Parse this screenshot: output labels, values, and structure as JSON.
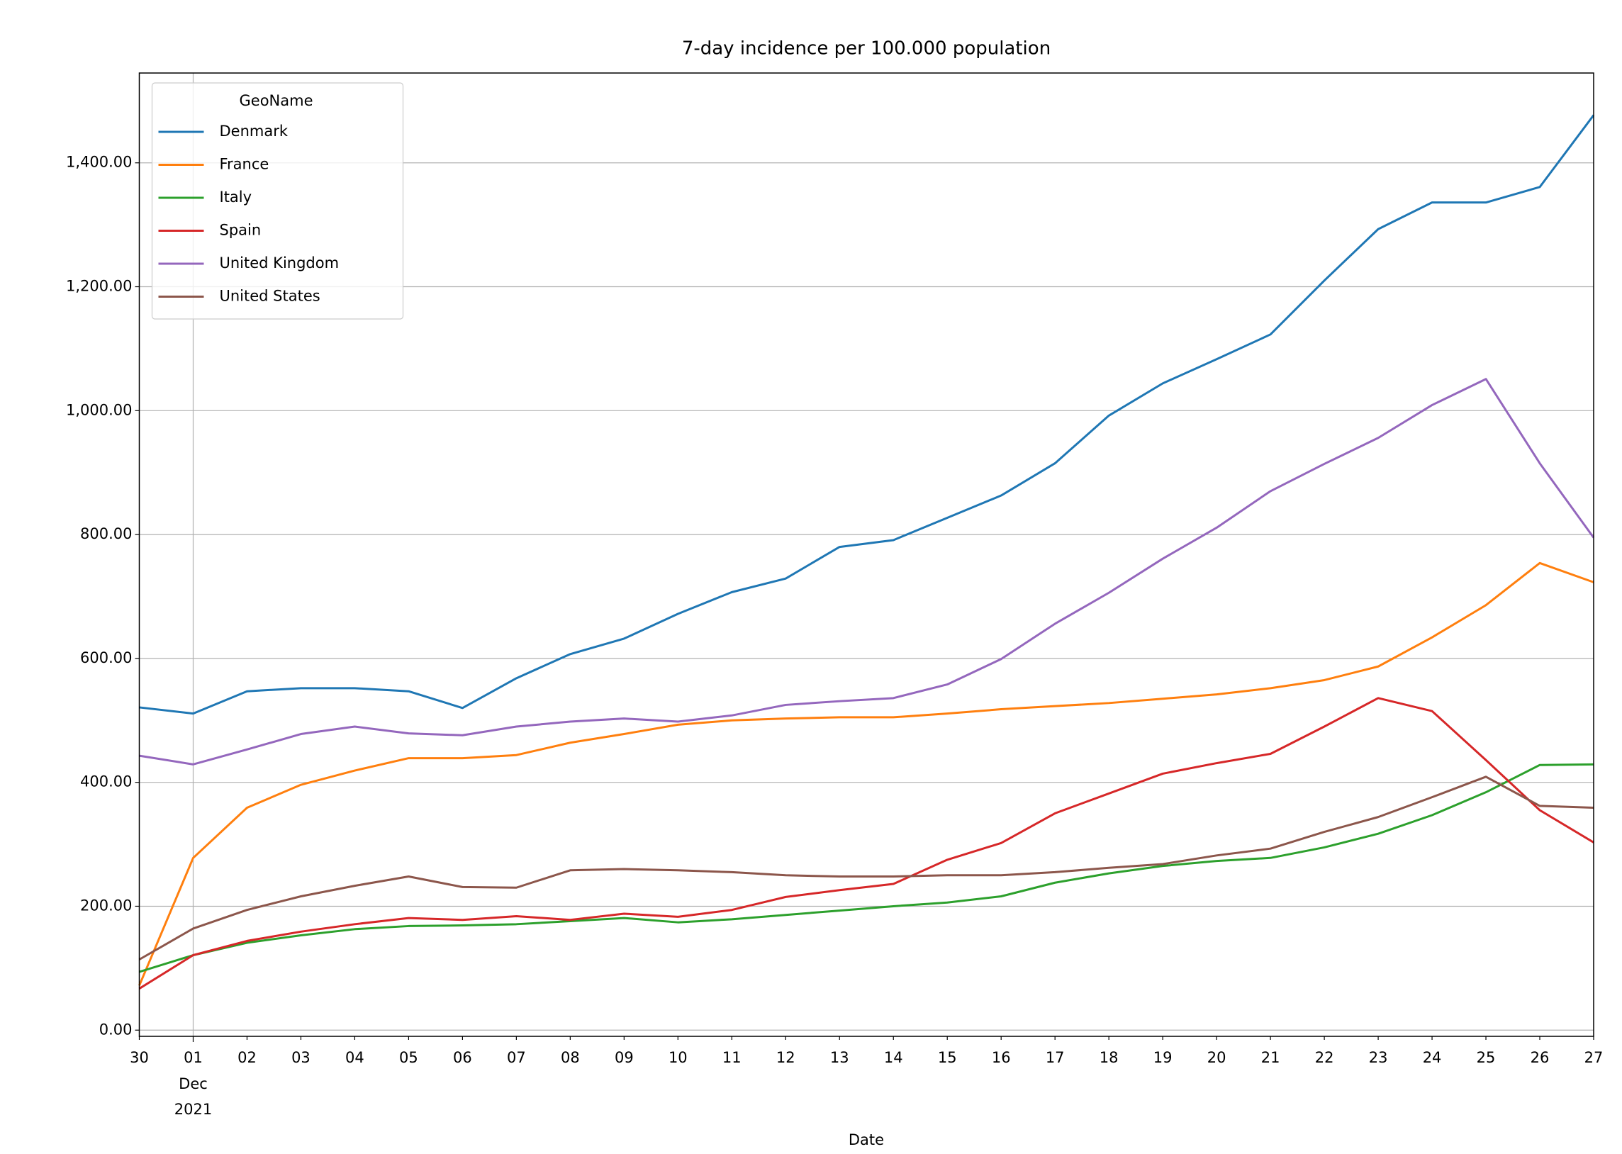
{
  "chart_data": {
    "type": "line",
    "title": "7-day incidence per 100.000 population",
    "x_label": "Date",
    "categories": [
      "30",
      "01",
      "02",
      "03",
      "04",
      "05",
      "06",
      "07",
      "08",
      "09",
      "10",
      "11",
      "12",
      "13",
      "14",
      "15",
      "16",
      "17",
      "18",
      "19",
      "20",
      "21",
      "22",
      "23",
      "24",
      "25",
      "26",
      "27"
    ],
    "month_row": [
      null,
      "Dec",
      null,
      null,
      null,
      null,
      null,
      null,
      null,
      null,
      null,
      null,
      null,
      null,
      null,
      null,
      null,
      null,
      null,
      null,
      null,
      null,
      null,
      null,
      null,
      null,
      null,
      null
    ],
    "year_row": [
      null,
      "2021",
      null,
      null,
      null,
      null,
      null,
      null,
      null,
      null,
      null,
      null,
      null,
      null,
      null,
      null,
      null,
      null,
      null,
      null,
      null,
      null,
      null,
      null,
      null,
      null,
      null,
      null
    ],
    "legend_title": "GeoName",
    "legend_loc": "upper left",
    "grid": true,
    "ylim": [
      -10,
      1545
    ],
    "yticks": [
      {
        "value": 0,
        "label": "0.00"
      },
      {
        "value": 200,
        "label": "200.00"
      },
      {
        "value": 400,
        "label": "400.00"
      },
      {
        "value": 600,
        "label": "600.00"
      },
      {
        "value": 800,
        "label": "800.00"
      },
      {
        "value": 1000,
        "label": "1,000.00"
      },
      {
        "value": 1200,
        "label": "1,200.00"
      },
      {
        "value": 1400,
        "label": "1,400.00"
      }
    ],
    "series": [
      {
        "name": "Denmark",
        "color": "#1f77b4",
        "values": [
          521,
          511,
          547,
          552,
          552,
          547,
          520,
          568,
          607,
          632,
          672,
          707,
          729,
          780,
          791,
          827,
          863,
          915,
          992,
          1044,
          1083,
          1123,
          1210,
          1293,
          1336,
          1336,
          1361,
          1477
        ]
      },
      {
        "name": "France",
        "color": "#ff7f0e",
        "values": [
          72,
          278,
          359,
          396,
          419,
          439,
          439,
          444,
          464,
          478,
          493,
          500,
          503,
          505,
          505,
          511,
          518,
          523,
          528,
          535,
          542,
          552,
          565,
          587,
          634,
          686,
          754,
          723
        ]
      },
      {
        "name": "Italy",
        "color": "#2ca02c",
        "values": [
          94,
          121,
          141,
          153,
          163,
          168,
          169,
          171,
          176,
          181,
          174,
          179,
          186,
          193,
          200,
          206,
          216,
          238,
          253,
          265,
          273,
          278,
          295,
          317,
          347,
          384,
          428,
          429
        ]
      },
      {
        "name": "Spain",
        "color": "#d62728",
        "values": [
          67,
          121,
          144,
          159,
          171,
          181,
          178,
          184,
          178,
          188,
          183,
          194,
          215,
          226,
          236,
          275,
          302,
          350,
          382,
          414,
          431,
          446,
          490,
          536,
          515,
          436,
          355,
          303
        ]
      },
      {
        "name": "United Kingdom",
        "color": "#9467bd",
        "values": [
          443,
          429,
          453,
          478,
          490,
          479,
          476,
          490,
          498,
          503,
          498,
          508,
          525,
          531,
          536,
          558,
          599,
          656,
          706,
          761,
          811,
          870,
          914,
          956,
          1009,
          1051,
          915,
          795
        ]
      },
      {
        "name": "United States",
        "color": "#8c564b",
        "values": [
          114,
          164,
          194,
          216,
          233,
          248,
          231,
          230,
          258,
          260,
          258,
          255,
          250,
          248,
          248,
          250,
          250,
          255,
          262,
          268,
          282,
          293,
          320,
          344,
          376,
          409,
          362,
          359
        ]
      }
    ]
  }
}
